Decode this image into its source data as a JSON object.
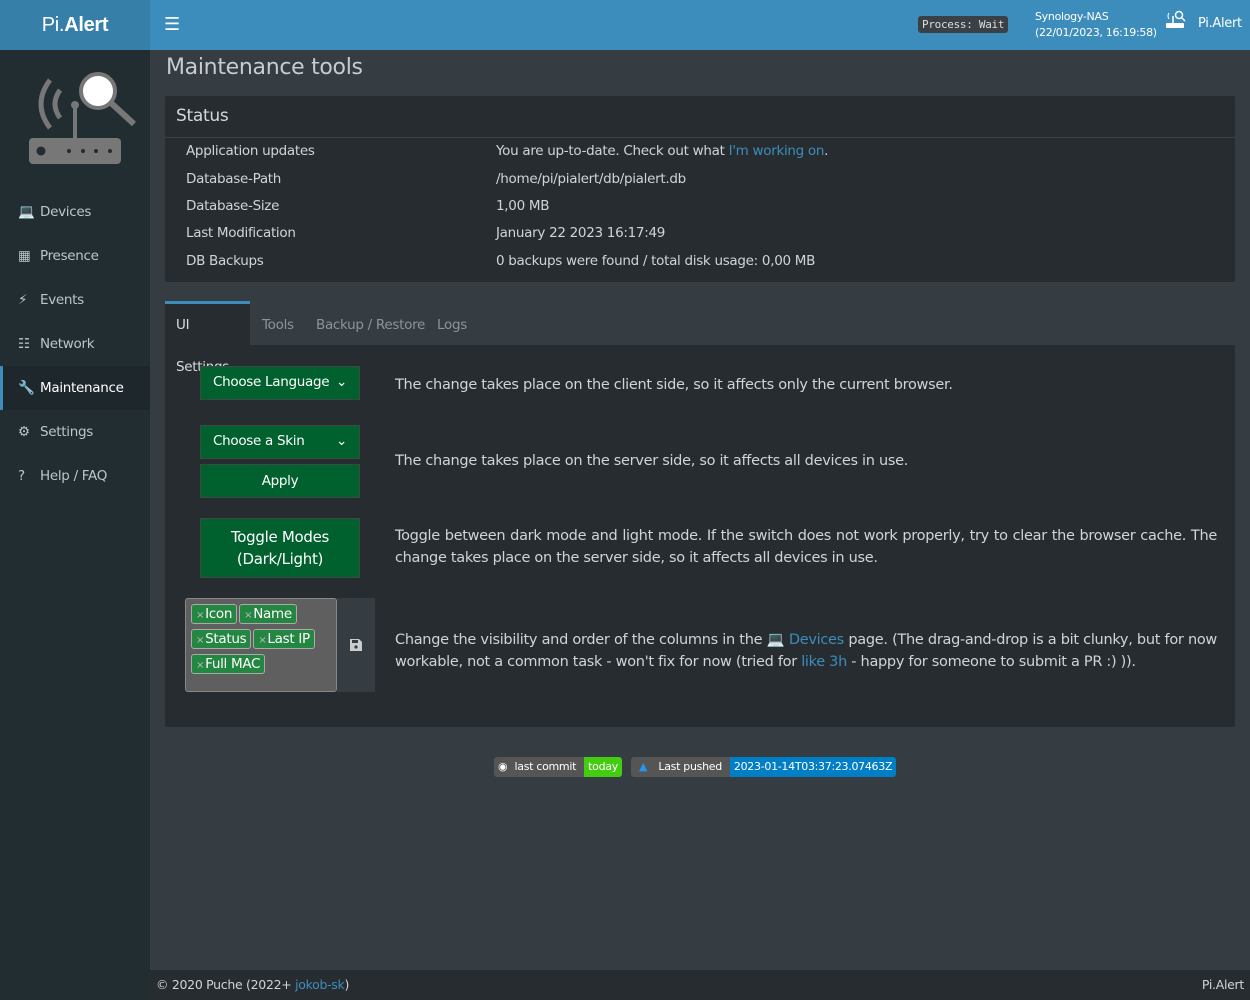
{
  "header": {
    "brand_prefix": "Pi.",
    "brand_suffix": "Alert",
    "process": "Process: Wait",
    "host": "Synology-NAS",
    "datetime": "(22/01/2023, 16:19:58)",
    "app_name": "Pi.Alert"
  },
  "sidebar": {
    "items": [
      {
        "label": "Devices",
        "icon": "laptop-icon"
      },
      {
        "label": "Presence",
        "icon": "calendar-icon"
      },
      {
        "label": "Events",
        "icon": "bolt-icon"
      },
      {
        "label": "Network",
        "icon": "sitemap-icon"
      },
      {
        "label": "Maintenance",
        "icon": "wrench-icon",
        "active": true
      },
      {
        "label": "Settings",
        "icon": "gear-icon"
      },
      {
        "label": "Help / FAQ",
        "icon": "question-icon"
      }
    ]
  },
  "page_title": "Maintenance tools",
  "status": {
    "title": "Status",
    "rows": [
      {
        "label": "Application updates",
        "value": "You are up-to-date. Check out what ",
        "link": "I'm working on",
        "suffix": "."
      },
      {
        "label": "Database-Path",
        "value": "/home/pi/pialert/db/pialert.db"
      },
      {
        "label": "Database-Size",
        "value": "1,00 MB"
      },
      {
        "label": "Last Modification",
        "value": "January 22 2023 16:17:49"
      },
      {
        "label": "DB Backups",
        "value": "0 backups were found / total disk usage: 0,00 MB"
      }
    ]
  },
  "tabs": [
    "UI Settings",
    "Tools",
    "Backup / Restore",
    "Logs"
  ],
  "ui_settings": {
    "language_select": "Choose Language",
    "language_desc": "The change takes place on the client side, so it affects only the current browser.",
    "skin_select": "Choose a Skin",
    "apply": "Apply",
    "skin_desc": "The change takes place on the server side, so it affects all devices in use.",
    "toggle_line1": "Toggle Modes",
    "toggle_line2": "(Dark/Light)",
    "toggle_desc": "Toggle between dark mode and light mode. If the switch does not work properly, try to clear the browser cache. The change takes place on the server side, so it affects all devices in use.",
    "columns": [
      "Icon",
      "Name",
      "Status",
      "Last IP",
      "Full MAC"
    ],
    "columns_desc_1": "Change the visibility and order of the columns in the ",
    "columns_desc_link": "Devices",
    "columns_desc_2": " page. (The drag-and-drop is a bit clunky, but for now workable, not a common task - won't fix for now (tried for ",
    "columns_desc_link2": "like 3h",
    "columns_desc_3": " - happy for someone to submit a PR :) ))."
  },
  "badges": {
    "commit_label": "last commit",
    "commit_value": "today",
    "pushed_label": "Last pushed",
    "pushed_value": "2023-01-14T03:37:23.07463Z"
  },
  "footer": {
    "copyright": "© 2020 Puche (2022+ ",
    "author": "jokob-sk",
    "close": ")",
    "right": "Pi.Alert"
  },
  "colors": {
    "header": "#3c8dbc",
    "sidebar": "#222d32",
    "button": "#00612f",
    "chip": "#238641"
  }
}
